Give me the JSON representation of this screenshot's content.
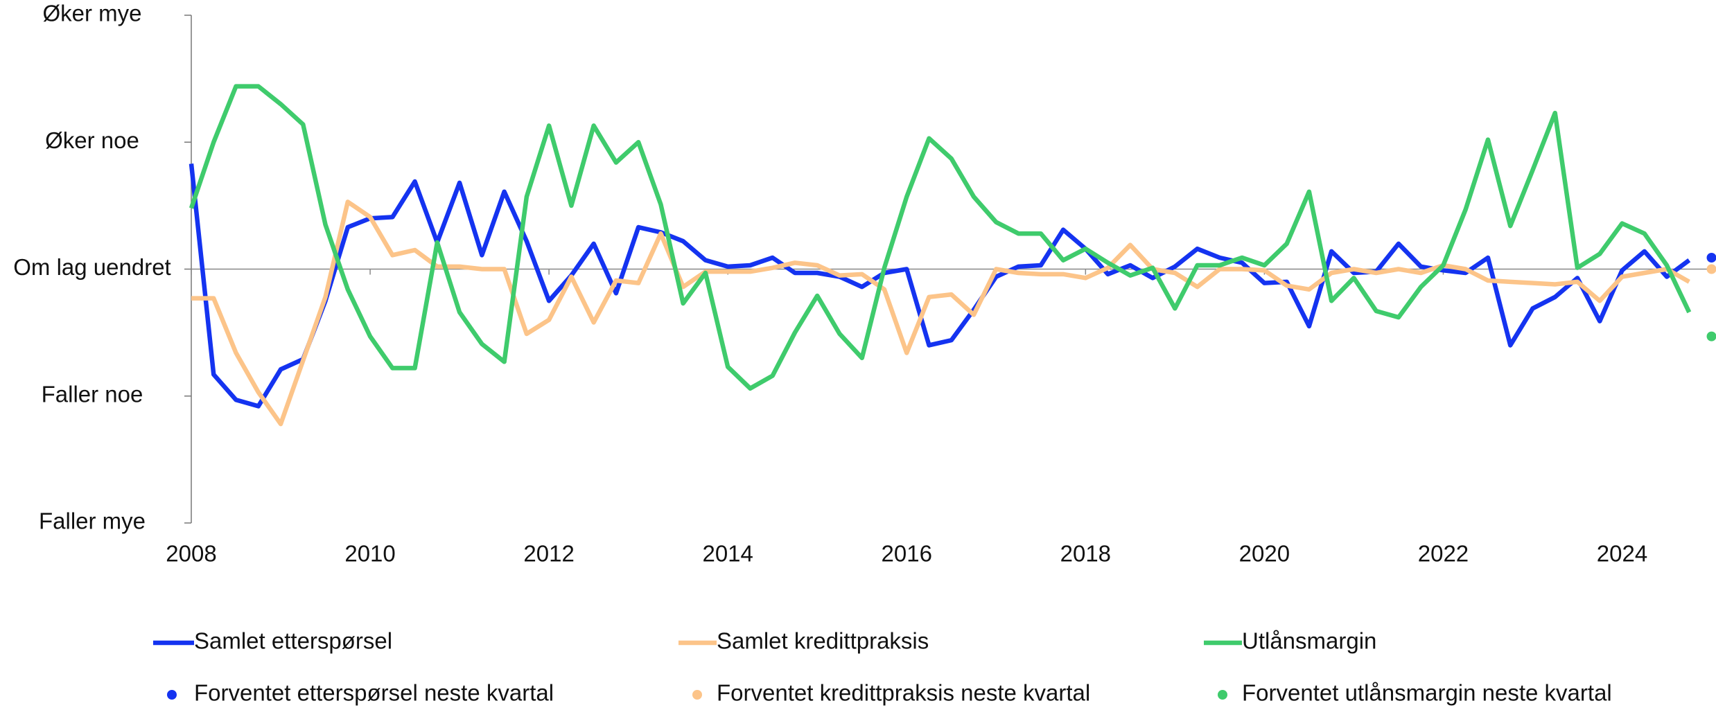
{
  "chart_data": {
    "type": "line",
    "x": [
      2008,
      2008.25,
      2008.5,
      2008.75,
      2009,
      2009.25,
      2009.5,
      2009.75,
      2010,
      2010.25,
      2010.5,
      2010.75,
      2011,
      2011.25,
      2011.5,
      2011.75,
      2012,
      2012.25,
      2012.5,
      2012.75,
      2013,
      2013.25,
      2013.5,
      2013.75,
      2014,
      2014.25,
      2014.5,
      2014.75,
      2015,
      2015.25,
      2015.5,
      2015.75,
      2016,
      2016.25,
      2016.5,
      2016.75,
      2017,
      2017.25,
      2017.5,
      2017.75,
      2018,
      2018.25,
      2018.5,
      2018.75,
      2019,
      2019.25,
      2019.5,
      2019.75,
      2020,
      2020.25,
      2020.5,
      2020.75,
      2021,
      2021.25,
      2021.5,
      2021.75,
      2022,
      2022.25,
      2022.5,
      2022.75,
      2023,
      2023.25,
      2023.5,
      2023.75,
      2024,
      2024.25,
      2024.5,
      2024.75
    ],
    "series": [
      {
        "name": "Samlet etterspørsel",
        "color": "#1433f0",
        "values": [
          0.83,
          -0.83,
          -1.03,
          -1.08,
          -0.79,
          -0.71,
          -0.25,
          0.33,
          0.4,
          0.41,
          0.69,
          0.21,
          0.68,
          0.11,
          0.61,
          0.22,
          -0.25,
          -0.05,
          0.2,
          -0.19,
          0.33,
          0.29,
          0.22,
          0.07,
          0.02,
          0.03,
          0.09,
          -0.03,
          -0.03,
          -0.06,
          -0.14,
          -0.03,
          0,
          -0.6,
          -0.56,
          -0.32,
          -0.06,
          0.02,
          0.03,
          0.31,
          0.16,
          -0.04,
          0.03,
          -0.07,
          0.02,
          0.16,
          0.09,
          0.05,
          -0.11,
          -0.1,
          -0.45,
          0.14,
          -0.03,
          -0.02,
          0.2,
          0.02,
          -0.01,
          -0.03,
          0.09,
          -0.6,
          -0.31,
          -0.22,
          -0.07,
          -0.41,
          -0.01,
          0.14,
          -0.06,
          0.07
        ]
      },
      {
        "name": "Samlet kredittpraksis",
        "color": "#fcc489",
        "values": [
          -0.23,
          -0.23,
          -0.66,
          -0.97,
          -1.22,
          -0.72,
          -0.22,
          0.53,
          0.41,
          0.11,
          0.15,
          0.02,
          0.02,
          0,
          0,
          -0.51,
          -0.4,
          -0.06,
          -0.42,
          -0.09,
          -0.11,
          0.28,
          -0.14,
          -0.02,
          -0.02,
          -0.02,
          0.01,
          0.05,
          0.03,
          -0.05,
          -0.04,
          -0.16,
          -0.66,
          -0.22,
          -0.2,
          -0.36,
          0,
          -0.03,
          -0.04,
          -0.04,
          -0.07,
          0.01,
          0.19,
          0,
          -0.03,
          -0.14,
          0,
          0,
          -0.01,
          -0.13,
          -0.16,
          -0.03,
          0,
          -0.03,
          0,
          -0.03,
          0.03,
          0,
          -0.09,
          -0.1,
          -0.11,
          -0.12,
          -0.1,
          -0.25,
          -0.06,
          -0.03,
          0,
          -0.1
        ]
      },
      {
        "name": "Utlånsmargin",
        "color": "#3fcb6c",
        "values": [
          0.48,
          1.0,
          1.44,
          1.44,
          1.3,
          1.14,
          0.35,
          -0.16,
          -0.53,
          -0.78,
          -0.78,
          0.21,
          -0.34,
          -0.59,
          -0.73,
          0.57,
          1.13,
          0.5,
          1.13,
          0.84,
          1.0,
          0.51,
          -0.27,
          -0.03,
          -0.77,
          -0.94,
          -0.84,
          -0.5,
          -0.21,
          -0.51,
          -0.7,
          0.01,
          0.57,
          1.03,
          0.87,
          0.57,
          0.37,
          0.28,
          0.28,
          0.07,
          0.16,
          0.05,
          -0.05,
          0.01,
          -0.31,
          0.03,
          0.03,
          0.09,
          0.03,
          0.2,
          0.61,
          -0.25,
          -0.07,
          -0.33,
          -0.38,
          -0.14,
          0.03,
          0.47,
          1.02,
          0.34,
          0.78,
          1.23,
          0.01,
          0.12,
          0.36,
          0.28,
          0.03,
          -0.34
        ]
      },
      {
        "name": "Forventet etterspørsel neste kvartal",
        "color": "#1433f0",
        "style": "dot",
        "x": [
          2025
        ],
        "values": [
          0.09
        ]
      },
      {
        "name": "Forventet kredittpraksis neste kvartal",
        "color": "#fcc489",
        "style": "dot",
        "x": [
          2025
        ],
        "values": [
          0
        ]
      },
      {
        "name": "Forventet utlånsmargin neste kvartal",
        "color": "#3fcb6c",
        "style": "dot",
        "x": [
          2025
        ],
        "values": [
          -0.53
        ]
      }
    ],
    "xlim": [
      2008,
      2025.05
    ],
    "xticks": [
      2008,
      2010,
      2012,
      2014,
      2016,
      2018,
      2020,
      2022,
      2024
    ],
    "ylim": [
      -2,
      2
    ],
    "yticks": [
      {
        "value": -2,
        "label": "Faller mye"
      },
      {
        "value": -1,
        "label": "Faller noe"
      },
      {
        "value": 0,
        "label": "Om lag uendret"
      },
      {
        "value": 1,
        "label": "Øker noe"
      },
      {
        "value": 2,
        "label": "Øker mye"
      }
    ],
    "legend": "bottom"
  }
}
